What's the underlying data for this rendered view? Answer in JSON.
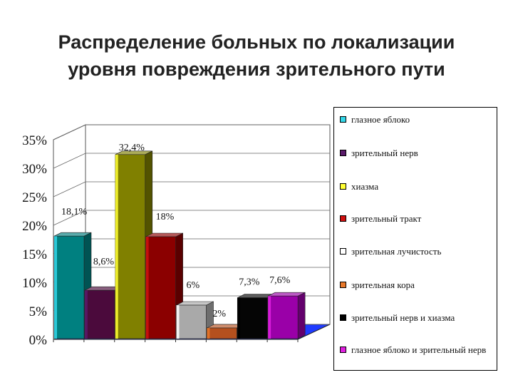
{
  "title_lines": [
    "Распределение больных по локализации",
    "уровня повреждения зрительного пути"
  ],
  "chart_data": {
    "type": "bar",
    "title": "Распределение больных по локализации уровня повреждения зрительного пути",
    "xlabel": "",
    "ylabel": "",
    "ylim": [
      0,
      35
    ],
    "y_ticks": [
      "0%",
      "5%",
      "10%",
      "15%",
      "20%",
      "25%",
      "30%",
      "35%"
    ],
    "grid": true,
    "three_d": true,
    "legend_position": "right",
    "categories": [
      "глазное яблоко",
      "зрительный нерв",
      "хиазма",
      "зрительный тракт",
      "зрительная лучистость",
      "зрительная кора",
      "зрительный нерв и хиазма",
      "глазное яблоко и зрительный нерв"
    ],
    "values": [
      18.1,
      8.6,
      32.4,
      18,
      6,
      2,
      7.3,
      7.6
    ],
    "value_labels": [
      "18,1%",
      "8,6%",
      "32,4%",
      "18%",
      "6%",
      "2%",
      "7,3%",
      "7,6%"
    ],
    "colors": [
      "#008080",
      "#4b0a3c",
      "#808000",
      "#8b0000",
      "#a9a9a9",
      "#b5501e",
      "#050505",
      "#9a00a8"
    ],
    "legend_swatch_colors": [
      "#33d6e8",
      "#5a1a6a",
      "#ffff33",
      "#d01010",
      "#ffffff",
      "#e8782a",
      "#000000",
      "#e020e0"
    ]
  }
}
